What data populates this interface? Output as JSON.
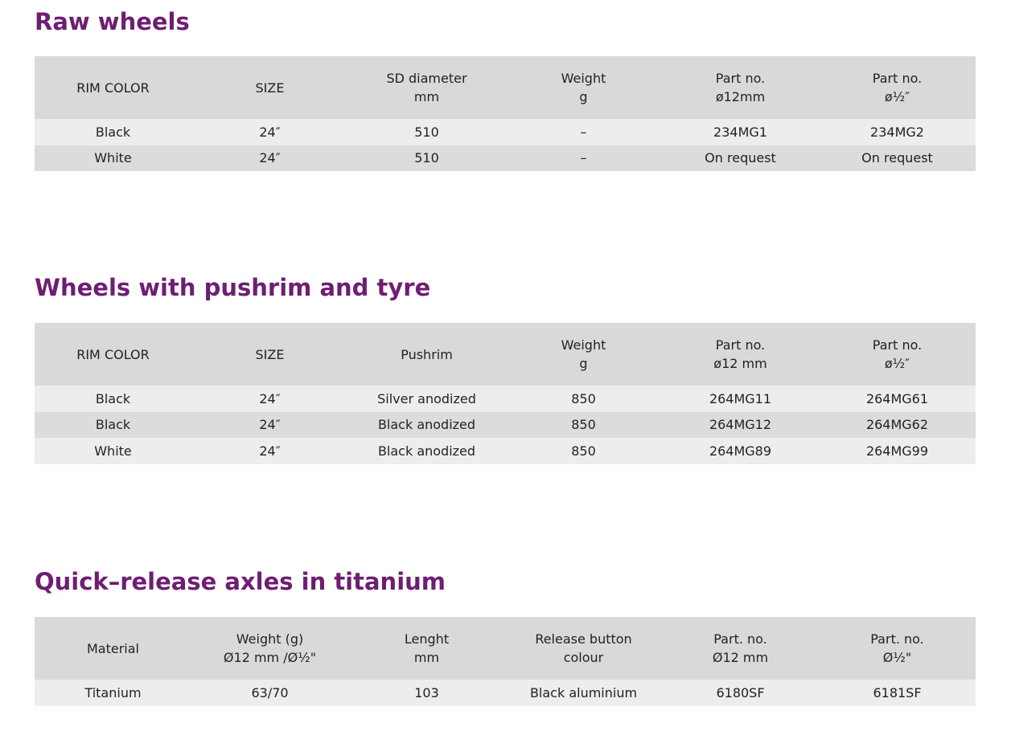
{
  "sections": [
    {
      "title": "Raw wheels",
      "table": {
        "header": [
          [
            "RIM COLOR"
          ],
          [
            "SIZE"
          ],
          [
            "SD diameter",
            "mm"
          ],
          [
            "Weight",
            "g"
          ],
          [
            "Part no.",
            "ø12mm"
          ],
          [
            "Part no.",
            "ø½″"
          ]
        ],
        "rows": [
          [
            "Black",
            "24″",
            "510",
            "–",
            "234MG1",
            "234MG2"
          ],
          [
            "White",
            "24″",
            "510",
            "–",
            "On request",
            "On request"
          ]
        ]
      }
    },
    {
      "title": "Wheels with pushrim and tyre",
      "table": {
        "header": [
          [
            "RIM COLOR"
          ],
          [
            "SIZE"
          ],
          [
            "Pushrim"
          ],
          [
            "Weight",
            "g"
          ],
          [
            "Part no.",
            "ø12 mm"
          ],
          [
            "Part no.",
            "ø½″"
          ]
        ],
        "rows": [
          [
            "Black",
            "24″",
            "Silver anodized",
            "850",
            "264MG11",
            "264MG61"
          ],
          [
            "Black",
            "24″",
            "Black anodized",
            "850",
            "264MG12",
            "264MG62"
          ],
          [
            "White",
            "24″",
            "Black anodized",
            "850",
            "264MG89",
            "264MG99"
          ]
        ]
      }
    },
    {
      "title": "Quick–release axles in titanium",
      "table": {
        "header": [
          [
            "Material"
          ],
          [
            "Weight (g)",
            "Ø12 mm /Ø½\""
          ],
          [
            "Lenght",
            "mm"
          ],
          [
            "Release button",
            "colour"
          ],
          [
            "Part. no.",
            "Ø12 mm"
          ],
          [
            "Part. no.",
            "Ø½\""
          ]
        ],
        "rows": [
          [
            "Titanium",
            "63/70",
            "103",
            "Black aluminium",
            "6180SF",
            "6181SF"
          ]
        ]
      }
    }
  ]
}
